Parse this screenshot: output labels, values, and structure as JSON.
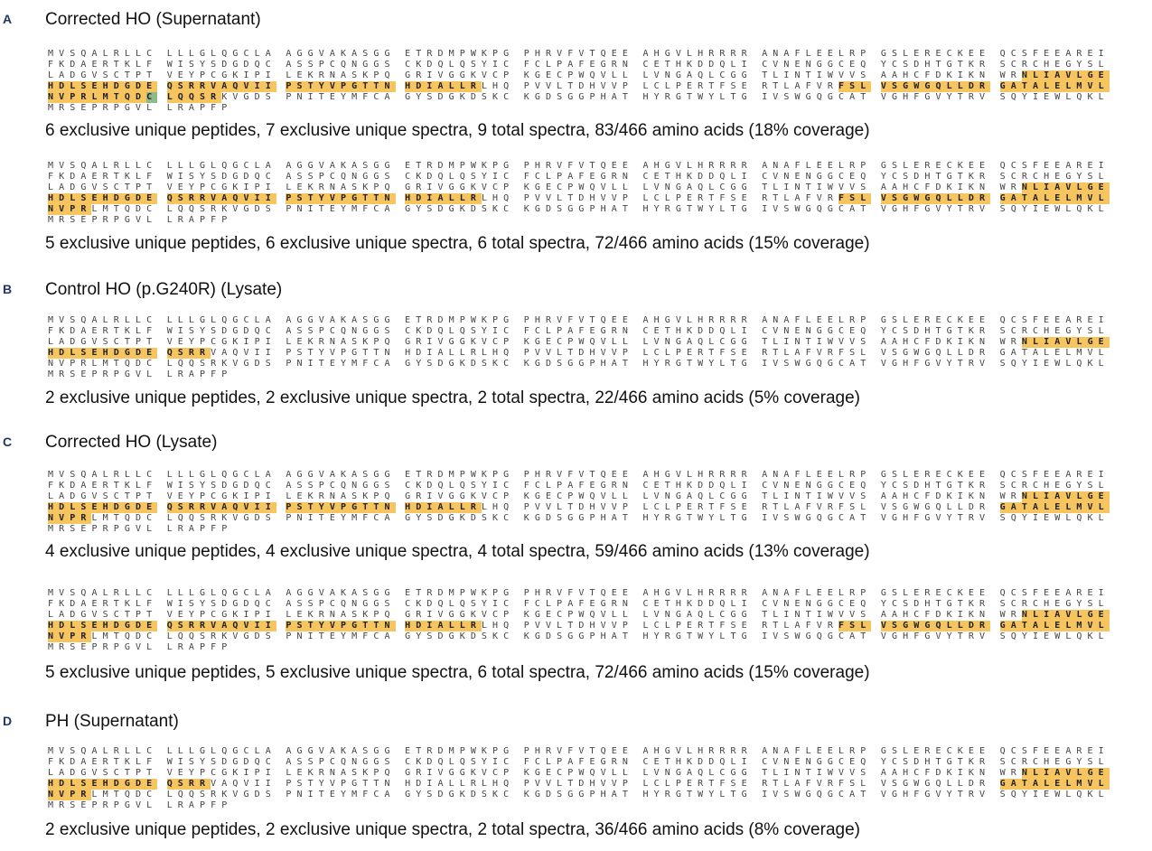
{
  "panels": [
    {
      "letter": "A",
      "title": "Corrected HO (Supernatant)",
      "blocks": [
        {
          "rows": [
            [
              "MVSQALRLLC",
              "LLLGLQGCLA",
              "AGGVAKASGG",
              "ETRDMPWKPG",
              "PHRVFVTQEE",
              "AHGVLHRRRR",
              "ANAFLEELRP",
              "GSLERECKEE",
              "QCSFEEAREI"
            ],
            [
              "FKDAERTKLF",
              "WISYSDGDQC",
              "ASSPCQNGGS",
              "CKDQLQSYIC",
              "FCLPAFEGRN",
              "CETHKDDQLI",
              "CVNENGGCEQ",
              "YCSDHTGTKR",
              "SCRCHEGYSL"
            ],
            [
              "LADGVSCTPT",
              "VEYPCGKIPI",
              "LEKRNASKPQ",
              "GRIVGGKVCP",
              "KGECPWQVLL",
              "LVNGAQLCGG",
              "TLINTIWVVS",
              "AAHCFDKIKN",
              [
                {
                  "t": "WR"
                },
                {
                  "t": "NLIAVLGE",
                  "h": "y"
                }
              ]
            ],
            [
              [
                {
                  "t": "HDLSEHDGDE",
                  "h": "y"
                }
              ],
              [
                {
                  "t": "QSRRVAQVII",
                  "h": "y"
                }
              ],
              [
                {
                  "t": "PSTYVPGTTN",
                  "h": "y"
                }
              ],
              [
                {
                  "t": "HDIALLR",
                  "h": "y"
                },
                {
                  "t": "LHQ"
                }
              ],
              "PVVLTDHVVP",
              "LCLPERTFSE",
              [
                {
                  "t": "RTLAFVR"
                },
                {
                  "t": "FSL",
                  "h": "y"
                }
              ],
              [
                {
                  "t": "VSGWGQLLDR",
                  "h": "y"
                }
              ],
              [
                {
                  "t": "GATALELMVL",
                  "h": "y"
                }
              ]
            ],
            [
              [
                {
                  "t": "NVPRLMTQD",
                  "h": "y"
                },
                {
                  "t": "C",
                  "h": "g"
                }
              ],
              [
                {
                  "t": "LQQSR",
                  "h": "y"
                },
                {
                  "t": "KVGDS"
                }
              ],
              "PNITEYMFCA",
              "GYSDGKDSKC",
              "KGDSGGPHAT",
              "HYRGTWYLTG",
              "IVSWGQGCAT",
              "VGHFGVYTRV",
              "SQYIEWLQKL"
            ],
            [
              "MRSEPRPGVL",
              "LRAPFP"
            ]
          ],
          "summary": "6 exclusive unique peptides, 7 exclusive unique spectra, 9 total spectra, 83/466 amino acids (18% coverage)"
        },
        {
          "rows": [
            [
              "MVSQALRLLC",
              "LLLGLQGCLA",
              "AGGVAKASGG",
              "ETRDMPWKPG",
              "PHRVFVTQEE",
              "AHGVLHRRRR",
              "ANAFLEELRP",
              "GSLERECKEE",
              "QCSFEEAREI"
            ],
            [
              "FKDAERTKLF",
              "WISYSDGDQC",
              "ASSPCQNGGS",
              "CKDQLQSYIC",
              "FCLPAFEGRN",
              "CETHKDDQLI",
              "CVNENGGCEQ",
              "YCSDHTGTKR",
              "SCRCHEGYSL"
            ],
            [
              "LADGVSCTPT",
              "VEYPCGKIPI",
              "LEKRNASKPQ",
              "GRIVGGKVCP",
              "KGECPWQVLL",
              "LVNGAQLCGG",
              "TLINTIWVVS",
              "AAHCFDKIKN",
              [
                {
                  "t": "WR"
                },
                {
                  "t": "NLIAVLGE",
                  "h": "y"
                }
              ]
            ],
            [
              [
                {
                  "t": "HDLSEHDGDE",
                  "h": "y"
                }
              ],
              [
                {
                  "t": "QSRRVAQVII",
                  "h": "y"
                }
              ],
              [
                {
                  "t": "PSTYVPGTTN",
                  "h": "y"
                }
              ],
              [
                {
                  "t": "HDIALLR",
                  "h": "y"
                },
                {
                  "t": "LHQ"
                }
              ],
              "PVVLTDHVVP",
              "LCLPERTFSE",
              [
                {
                  "t": "RTLAFVR"
                },
                {
                  "t": "FSL",
                  "h": "y"
                }
              ],
              [
                {
                  "t": "VSGWGQLLDR",
                  "h": "y"
                }
              ],
              [
                {
                  "t": "GATALELMVL",
                  "h": "y"
                }
              ]
            ],
            [
              [
                {
                  "t": "NVPR",
                  "h": "y"
                },
                {
                  "t": "LMTQDC"
                }
              ],
              "LQQSRKVGDS",
              "PNITEYMFCA",
              "GYSDGKDSKC",
              "KGDSGGPHAT",
              "HYRGTWYLTG",
              "IVSWGQGCAT",
              "VGHFGVYTRV",
              "SQYIEWLQKL"
            ],
            [
              "MRSEPRPGVL",
              "LRAPFP"
            ]
          ],
          "summary": "5 exclusive unique peptides, 6 exclusive unique spectra, 6 total spectra, 72/466 amino acids (15% coverage)"
        }
      ]
    },
    {
      "letter": "B",
      "title": "Control HO (p.G240R) (Lysate)",
      "blocks": [
        {
          "rows": [
            [
              "MVSQALRLLC",
              "LLLGLQGCLA",
              "AGGVAKASGG",
              "ETRDMPWKPG",
              "PHRVFVTQEE",
              "AHGVLHRRRR",
              "ANAFLEELRP",
              "GSLERECKEE",
              "QCSFEEAREI"
            ],
            [
              "FKDAERTKLF",
              "WISYSDGDQC",
              "ASSPCQNGGS",
              "CKDQLQSYIC",
              "FCLPAFEGRN",
              "CETHKDDQLI",
              "CVNENGGCEQ",
              "YCSDHTGTKR",
              "SCRCHEGYSL"
            ],
            [
              "LADGVSCTPT",
              "VEYPCGKIPI",
              "LEKRNASKPQ",
              "GRIVGGKVCP",
              "KGECPWQVLL",
              "LVNGAQLCGG",
              "TLINTIWVVS",
              "AAHCFDKIKN",
              [
                {
                  "t": "WR"
                },
                {
                  "t": "NLIAVLGE",
                  "h": "y"
                }
              ]
            ],
            [
              [
                {
                  "t": "HDLSEHDGDE",
                  "h": "y"
                }
              ],
              [
                {
                  "t": "QSRR",
                  "h": "y"
                },
                {
                  "t": "VAQVII"
                }
              ],
              "PSTYVPGTTN",
              "HDIALLRLHQ",
              "PVVLTDHVVP",
              "LCLPERTFSE",
              "RTLAFVRFSL",
              "VSGWGQLLDR",
              "GATALELMVL"
            ],
            [
              "NVPRLMTQDC",
              "LQQSRKVGDS",
              "PNITEYMFCA",
              "GYSDGKDSKC",
              "KGDSGGPHAT",
              "HYRGTWYLTG",
              "IVSWGQGCAT",
              "VGHFGVYTRV",
              "SQYIEWLQKL"
            ],
            [
              "MRSEPRPGVL",
              "LRAPFP"
            ]
          ],
          "summary": "2 exclusive unique peptides, 2 exclusive unique spectra, 2 total spectra, 22/466 amino acids (5% coverage)"
        }
      ]
    },
    {
      "letter": "C",
      "title": "Corrected HO (Lysate)",
      "blocks": [
        {
          "rows": [
            [
              "MVSQALRLLC",
              "LLLGLQGCLA",
              "AGGVAKASGG",
              "ETRDMPWKPG",
              "PHRVFVTQEE",
              "AHGVLHRRRR",
              "ANAFLEELRP",
              "GSLERECKEE",
              "QCSFEEAREI"
            ],
            [
              "FKDAERTKLF",
              "WISYSDGDQC",
              "ASSPCQNGGS",
              "CKDQLQSYIC",
              "FCLPAFEGRN",
              "CETHKDDQLI",
              "CVNENGGCEQ",
              "YCSDHTGTKR",
              "SCRCHEGYSL"
            ],
            [
              "LADGVSCTPT",
              "VEYPCGKIPI",
              "LEKRNASKPQ",
              "GRIVGGKVCP",
              "KGECPWQVLL",
              "LVNGAQLCGG",
              "TLINTIWVVS",
              "AAHCFDKIKN",
              [
                {
                  "t": "WR"
                },
                {
                  "t": "NLIAVLGE",
                  "h": "y"
                }
              ]
            ],
            [
              [
                {
                  "t": "HDLSEHDGDE",
                  "h": "y"
                }
              ],
              [
                {
                  "t": "QSRRVAQVII",
                  "h": "y"
                }
              ],
              [
                {
                  "t": "PSTYVPGTTN",
                  "h": "y"
                }
              ],
              [
                {
                  "t": "HDIALLR",
                  "h": "y"
                },
                {
                  "t": "LHQ"
                }
              ],
              "PVVLTDHVVP",
              "LCLPERTFSE",
              "RTLAFVRFSL",
              "VSGWGQLLDR",
              [
                {
                  "t": "GATALELMVL",
                  "h": "y"
                }
              ]
            ],
            [
              [
                {
                  "t": "NVPR",
                  "h": "y"
                },
                {
                  "t": "LMTQDC"
                }
              ],
              "LQQSRKVGDS",
              "PNITEYMFCA",
              "GYSDGKDSKC",
              "KGDSGGPHAT",
              "HYRGTWYLTG",
              "IVSWGQGCAT",
              "VGHFGVYTRV",
              "SQYIEWLQKL"
            ],
            [
              "MRSEPRPGVL",
              "LRAPFP"
            ]
          ],
          "summary": "4 exclusive unique peptides, 4 exclusive unique spectra, 4 total spectra, 59/466 amino acids (13% coverage)"
        },
        {
          "rows": [
            [
              "MVSQALRLLC",
              "LLLGLQGCLA",
              "AGGVAKASGG",
              "ETRDMPWKPG",
              "PHRVFVTQEE",
              "AHGVLHRRRR",
              "ANAFLEELRP",
              "GSLERECKEE",
              "QCSFEEAREI"
            ],
            [
              "FKDAERTKLF",
              "WISYSDGDQC",
              "ASSPCQNGGS",
              "CKDQLQSYIC",
              "FCLPAFEGRN",
              "CETHKDDQLI",
              "CVNENGGCEQ",
              "YCSDHTGTKR",
              "SCRCHEGYSL"
            ],
            [
              "LADGVSCTPT",
              "VEYPCGKIPI",
              "LEKRNASKPQ",
              "GRIVGGKVCP",
              "KGECPWQVLL",
              "LVNGAQLCGG",
              "TLINTIWVVS",
              "AAHCFDKIKN",
              [
                {
                  "t": "WR"
                },
                {
                  "t": "NLIAVLGE",
                  "h": "y"
                }
              ]
            ],
            [
              [
                {
                  "t": "HDLSEHDGDE",
                  "h": "y"
                }
              ],
              [
                {
                  "t": "QSRRVAQVII",
                  "h": "y"
                }
              ],
              [
                {
                  "t": "PSTYVPGTTN",
                  "h": "y"
                }
              ],
              [
                {
                  "t": "HDIALLR",
                  "h": "y"
                },
                {
                  "t": "LHQ"
                }
              ],
              "PVVLTDHVVP",
              "LCLPERTFSE",
              [
                {
                  "t": "RTLAFVR"
                },
                {
                  "t": "FSL",
                  "h": "y"
                }
              ],
              [
                {
                  "t": "VSGWGQLLDR",
                  "h": "y"
                }
              ],
              [
                {
                  "t": "GATALELMVL",
                  "h": "y"
                }
              ]
            ],
            [
              [
                {
                  "t": "NVPR",
                  "h": "y"
                },
                {
                  "t": "LMTQDC"
                }
              ],
              "LQQSRKVGDS",
              "PNITEYMFCA",
              "GYSDGKDSKC",
              "KGDSGGPHAT",
              "HYRGTWYLTG",
              "IVSWGQGCAT",
              "VGHFGVYTRV",
              "SQYIEWLQKL"
            ],
            [
              "MRSEPRPGVL",
              "LRAPFP"
            ]
          ],
          "summary": "5 exclusive unique peptides, 5 exclusive unique spectra, 6 total spectra, 72/466 amino acids (15% coverage)"
        }
      ]
    },
    {
      "letter": "D",
      "title": "PH (Supernatant)",
      "blocks": [
        {
          "rows": [
            [
              "MVSQALRLLC",
              "LLLGLQGCLA",
              "AGGVAKASGG",
              "ETRDMPWKPG",
              "PHRVFVTQEE",
              "AHGVLHRRRR",
              "ANAFLEELRP",
              "GSLERECKEE",
              "QCSFEEAREI"
            ],
            [
              "FKDAERTKLF",
              "WISYSDGDQC",
              "ASSPCQNGGS",
              "CKDQLQSYIC",
              "FCLPAFEGRN",
              "CETHKDDQLI",
              "CVNENGGCEQ",
              "YCSDHTGTKR",
              "SCRCHEGYSL"
            ],
            [
              "LADGVSCTPT",
              "VEYPCGKIPI",
              "LEKRNASKPQ",
              "GRIVGGKVCP",
              "KGECPWQVLL",
              "LVNGAQLCGG",
              "TLINTIWVVS",
              "AAHCFDKIKN",
              [
                {
                  "t": "WR"
                },
                {
                  "t": "NLIAVLGE",
                  "h": "y"
                }
              ]
            ],
            [
              [
                {
                  "t": "HDLSEHDGDE",
                  "h": "y"
                }
              ],
              [
                {
                  "t": "QSRR",
                  "h": "y"
                },
                {
                  "t": "VAQVII"
                }
              ],
              "PSTYVPGTTN",
              "HDIALLRLHQ",
              "PVVLTDHVVP",
              "LCLPERTFSE",
              "RTLAFVRFSL",
              "VSGWGQLLDR",
              [
                {
                  "t": "GATALELMVL",
                  "h": "y"
                }
              ]
            ],
            [
              [
                {
                  "t": "NVPR",
                  "h": "y"
                },
                {
                  "t": "LMTQDC"
                }
              ],
              "LQQSRKVGDS",
              "PNITEYMFCA",
              "GYSDGKDSKC",
              "KGDSGGPHAT",
              "HYRGTWYLTG",
              "IVSWGQGCAT",
              "VGHFGVYTRV",
              "SQYIEWLQKL"
            ],
            [
              "MRSEPRPGVL",
              "LRAPFP"
            ]
          ],
          "summary": "2 exclusive unique peptides, 2 exclusive unique spectra, 2 total spectra, 36/466 amino acids (8% coverage)"
        }
      ]
    }
  ]
}
